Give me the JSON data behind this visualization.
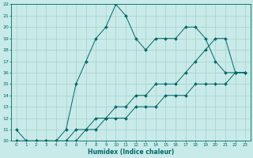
{
  "xlabel": "Humidex (Indice chaleur)",
  "ylabel": "",
  "xlim": [
    -0.5,
    23.5
  ],
  "ylim": [
    10,
    22
  ],
  "xticks": [
    0,
    1,
    2,
    3,
    4,
    5,
    6,
    7,
    8,
    9,
    10,
    11,
    12,
    13,
    14,
    15,
    16,
    17,
    18,
    19,
    20,
    21,
    22,
    23
  ],
  "yticks": [
    10,
    11,
    12,
    13,
    14,
    15,
    16,
    17,
    18,
    19,
    20,
    21,
    22
  ],
  "bg_color": "#c8eae8",
  "line_color": "#006868",
  "grid_color": "#a8d0ce",
  "line1_x": [
    0,
    1,
    2,
    3,
    4,
    5,
    6,
    7,
    8,
    9,
    10,
    11,
    12,
    13,
    14,
    15,
    16,
    17,
    18,
    19,
    20,
    21,
    22,
    23
  ],
  "line1_y": [
    11,
    10,
    10,
    10,
    10,
    11,
    15,
    17,
    19,
    20,
    22,
    21,
    19,
    18,
    19,
    19,
    19,
    20,
    20,
    19,
    17,
    16,
    16,
    16
  ],
  "line2_x": [
    0,
    1,
    2,
    3,
    4,
    5,
    6,
    7,
    8,
    9,
    10,
    11,
    12,
    13,
    14,
    15,
    16,
    17,
    18,
    19,
    20,
    21,
    22,
    23
  ],
  "line2_y": [
    10,
    10,
    10,
    10,
    10,
    10,
    11,
    11,
    12,
    12,
    13,
    13,
    14,
    14,
    15,
    15,
    15,
    16,
    17,
    18,
    19,
    19,
    16,
    16
  ],
  "line3_x": [
    0,
    1,
    2,
    3,
    4,
    5,
    6,
    7,
    8,
    9,
    10,
    11,
    12,
    13,
    14,
    15,
    16,
    17,
    18,
    19,
    20,
    21,
    22,
    23
  ],
  "line3_y": [
    10,
    10,
    10,
    10,
    10,
    10,
    10,
    11,
    11,
    12,
    12,
    12,
    13,
    13,
    13,
    14,
    14,
    14,
    15,
    15,
    15,
    15,
    16,
    16
  ]
}
